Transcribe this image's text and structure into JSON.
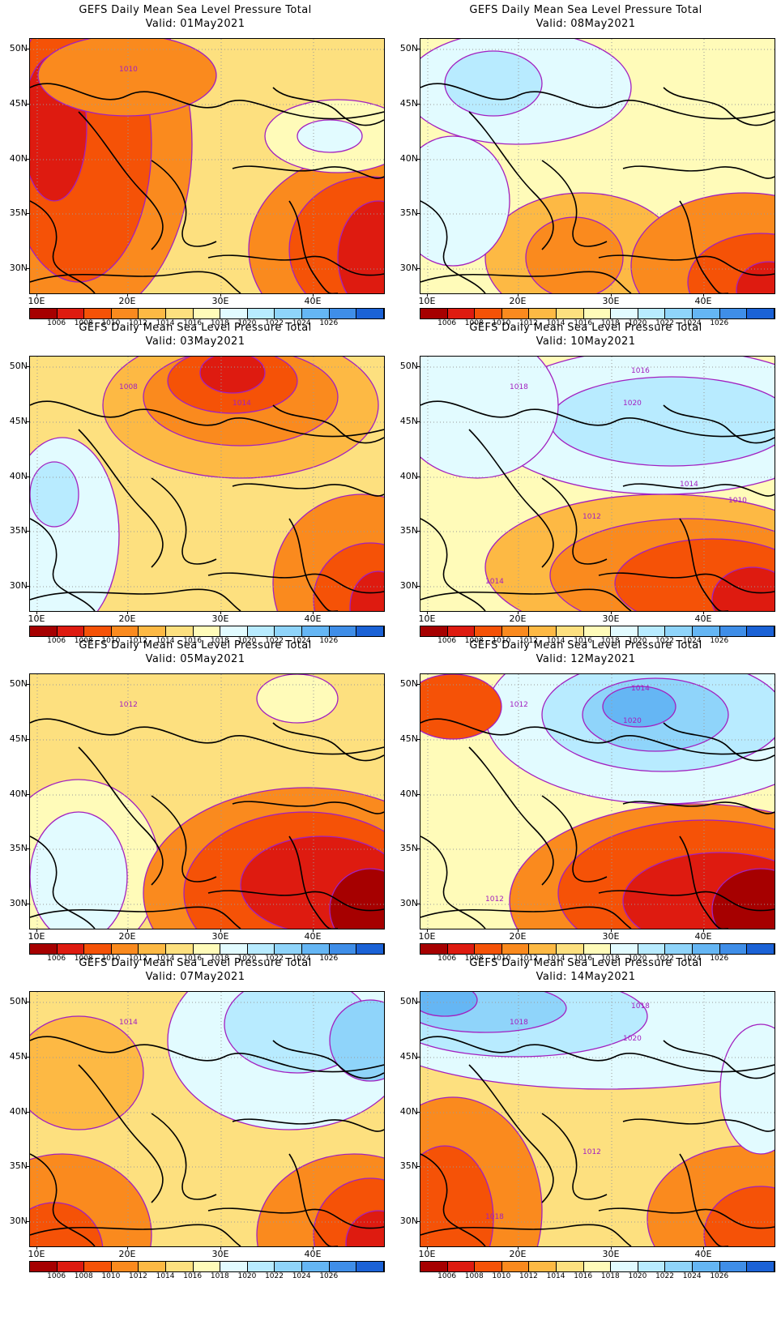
{
  "title": "GEFS Daily Mean Sea Level Pressure Total",
  "lat_labels": [
    "50N",
    "45N",
    "40N",
    "35N",
    "30N"
  ],
  "lon_labels": [
    "10E",
    "20E",
    "30E",
    "40E"
  ],
  "colorbar": {
    "levels": [
      "1006",
      "1008",
      "1010",
      "1012",
      "1014",
      "1016",
      "1018",
      "1020",
      "1022",
      "1024",
      "1026"
    ],
    "colors": [
      "#a60000",
      "#de1b10",
      "#f55207",
      "#fa8a1e",
      "#fdb944",
      "#fde07f",
      "#fffbb9",
      "#e2fbff",
      "#b8ebff",
      "#8fd4fa",
      "#65b6f4",
      "#3f8ee8",
      "#1b62d6"
    ]
  },
  "contour_color": "#a220c0",
  "panels": [
    {
      "valid": "Valid: 01May2021",
      "labels": [
        "1010"
      ]
    },
    {
      "valid": "Valid: 08May2021",
      "labels": []
    },
    {
      "valid": "Valid: 03May2021",
      "labels": [
        "1008",
        "1014"
      ]
    },
    {
      "valid": "Valid: 10May2021",
      "labels": [
        "1018",
        "1020",
        "1016",
        "1014",
        "1012",
        "1014",
        "1010"
      ]
    },
    {
      "valid": "Valid: 05May2021",
      "labels": [
        "1012"
      ]
    },
    {
      "valid": "Valid: 12May2021",
      "labels": [
        "1012",
        "1020",
        "1014",
        "1012"
      ]
    },
    {
      "valid": "Valid: 07May2021",
      "labels": [
        "1014"
      ]
    },
    {
      "valid": "Valid: 14May2021",
      "labels": [
        "1018",
        "1020",
        "1018",
        "1018",
        "1012"
      ]
    }
  ]
}
